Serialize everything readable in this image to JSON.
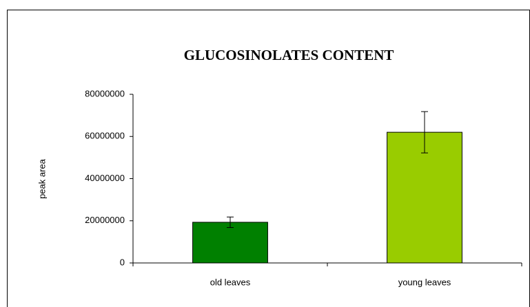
{
  "chart_data": {
    "type": "bar",
    "title": "GLUCOSINOLATES CONTENT",
    "y_label": "peak area",
    "categories": [
      "old leaves",
      "young leaves"
    ],
    "values": [
      19300000,
      62000000
    ],
    "errors": [
      2500000,
      9800000
    ],
    "colors": [
      "#008000",
      "#99cc00"
    ],
    "ylim": [
      0,
      80000000
    ],
    "yticks": [
      0,
      20000000,
      40000000,
      60000000,
      80000000
    ],
    "grid": false
  }
}
